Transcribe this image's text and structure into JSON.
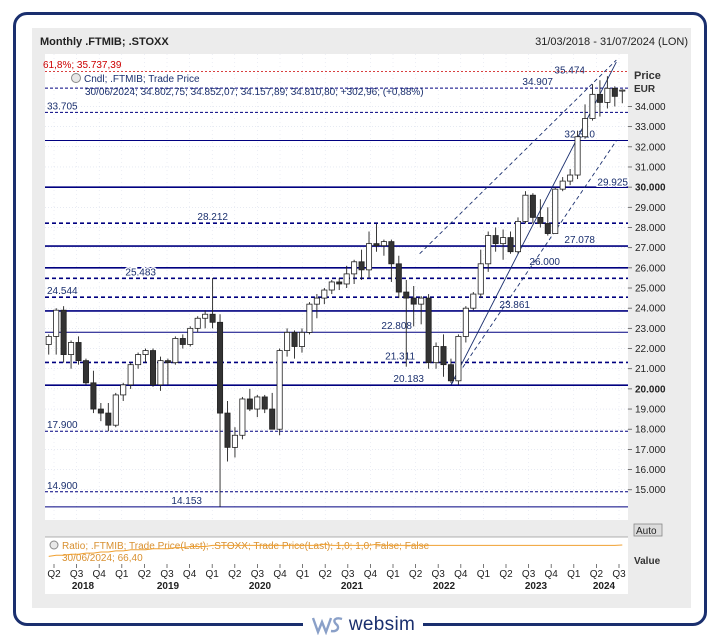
{
  "header": {
    "title": "Monthly .FTMIB; .STOXX",
    "date_range": "31/03/2018 - 31/07/2024 (LON)"
  },
  "info": {
    "series_label": "Cndl; .FTMIB; Trade Price",
    "ohlc_line": "30/06/2024; 34.802,75; 34.852,07; 34.157,89; 34.810,80; +302,96; (+0,88%)",
    "fib_label": "61,8%; 35.737,39"
  },
  "axis": {
    "price_title": "Price",
    "currency": "EUR",
    "auto_button": "Auto",
    "value_label": "Value"
  },
  "ratio_panel": {
    "label": "Ratio; .FTMIB; Trade Price(Last); .STOXX; Trade Price(Last);  1,0; 1,0; False; False",
    "last_value": "30/06/2024; 66,40"
  },
  "brand": {
    "name": "websim",
    "logo_icon": "ws-logo-icon"
  },
  "colors": {
    "navy": "#1a2f6e",
    "level_line": "#000080",
    "ratio_line": "#f0a030",
    "fib_line": "#cc0000",
    "grid": "#cfd6e6"
  },
  "chart_data": {
    "type": "candlestick",
    "title": "Monthly .FTMIB; .STOXX",
    "ylabel": "Price EUR",
    "ylim": [
      13500,
      36600
    ],
    "y_ticks": [
      15000,
      16000,
      17000,
      18000,
      19000,
      20000,
      21000,
      22000,
      23000,
      24000,
      25000,
      26000,
      27000,
      28000,
      29000,
      30000,
      31000,
      32000,
      33000,
      34000
    ],
    "y_tick_labels": [
      "15.000",
      "16.000",
      "17.000",
      "18.000",
      "19.000",
      "20.000",
      "21.000",
      "22.000",
      "23.000",
      "24.000",
      "25.000",
      "26.000",
      "27.000",
      "28.000",
      "29.000",
      "30.000",
      "31.000",
      "32.000",
      "33.000",
      "34.000"
    ],
    "x_quarters": [
      "Q2",
      "Q3",
      "Q4",
      "Q1",
      "Q2",
      "Q3",
      "Q4",
      "Q1",
      "Q2",
      "Q3",
      "Q4",
      "Q1",
      "Q2",
      "Q3",
      "Q4",
      "Q1",
      "Q2",
      "Q3",
      "Q4",
      "Q1",
      "Q2",
      "Q3",
      "Q4",
      "Q1",
      "Q2",
      "Q3"
    ],
    "x_years": [
      "2018",
      "2019",
      "2020",
      "2021",
      "2022",
      "2023",
      "2024"
    ],
    "levels": [
      {
        "value": 33705,
        "label": "33.705",
        "style": "dashed"
      },
      {
        "value": 32310,
        "label": "32.310",
        "style": "solid"
      },
      {
        "value": 30000,
        "label": "",
        "style": "solid-thick"
      },
      {
        "value": 29925,
        "label": "29.925",
        "style": "none"
      },
      {
        "value": 28212,
        "label": "28.212",
        "style": "dashed-thick"
      },
      {
        "value": 27078,
        "label": "27.078",
        "style": "solid-thick"
      },
      {
        "value": 26000,
        "label": "26.000",
        "style": "solid-thick"
      },
      {
        "value": 25483,
        "label": "25.483",
        "style": "dashed-thick"
      },
      {
        "value": 24544,
        "label": "24.544",
        "style": "dashed-thick"
      },
      {
        "value": 23861,
        "label": "23.861",
        "style": "solid-thick"
      },
      {
        "value": 22808,
        "label": "22.808",
        "style": "solid"
      },
      {
        "value": 21311,
        "label": "21.311",
        "style": "dashed-thick"
      },
      {
        "value": 20183,
        "label": "20.183",
        "style": "solid-thick"
      },
      {
        "value": 17900,
        "label": "17.900",
        "style": "dashed"
      },
      {
        "value": 14900,
        "label": "14.900",
        "style": "dashed"
      },
      {
        "value": 14153,
        "label": "14.153",
        "style": "solid"
      },
      {
        "value": 34907,
        "label": "34.907",
        "style": "dashed"
      },
      {
        "value": 35474,
        "label": "35.474",
        "style": "none"
      },
      {
        "value": 35737,
        "label": "",
        "style": "fib"
      }
    ],
    "candles": [
      {
        "o": 22200,
        "h": 22700,
        "l": 21700,
        "c": 22600
      },
      {
        "o": 22600,
        "h": 24000,
        "l": 21700,
        "c": 23900
      },
      {
        "o": 23900,
        "h": 24100,
        "l": 21300,
        "c": 21700
      },
      {
        "o": 21700,
        "h": 22400,
        "l": 21000,
        "c": 22300
      },
      {
        "o": 22300,
        "h": 22600,
        "l": 21200,
        "c": 21400
      },
      {
        "o": 21400,
        "h": 21500,
        "l": 20200,
        "c": 20300
      },
      {
        "o": 20300,
        "h": 20900,
        "l": 18800,
        "c": 19000
      },
      {
        "o": 19000,
        "h": 19300,
        "l": 18400,
        "c": 18800
      },
      {
        "o": 18800,
        "h": 19300,
        "l": 17900,
        "c": 18200
      },
      {
        "o": 18200,
        "h": 19800,
        "l": 18100,
        "c": 19700
      },
      {
        "o": 19700,
        "h": 20300,
        "l": 19400,
        "c": 20200
      },
      {
        "o": 20200,
        "h": 21300,
        "l": 20000,
        "c": 21200
      },
      {
        "o": 21200,
        "h": 21800,
        "l": 21000,
        "c": 21700
      },
      {
        "o": 21700,
        "h": 22000,
        "l": 21300,
        "c": 21900
      },
      {
        "o": 21900,
        "h": 22000,
        "l": 20100,
        "c": 20200
      },
      {
        "o": 20200,
        "h": 21600,
        "l": 19900,
        "c": 21400
      },
      {
        "o": 21400,
        "h": 21500,
        "l": 20200,
        "c": 21300
      },
      {
        "o": 21300,
        "h": 22600,
        "l": 21200,
        "c": 22500
      },
      {
        "o": 22500,
        "h": 22700,
        "l": 22000,
        "c": 22200
      },
      {
        "o": 22200,
        "h": 23100,
        "l": 22100,
        "c": 23000
      },
      {
        "o": 23000,
        "h": 23600,
        "l": 22800,
        "c": 23500
      },
      {
        "o": 23500,
        "h": 23900,
        "l": 23000,
        "c": 23700
      },
      {
        "o": 23700,
        "h": 25500,
        "l": 23000,
        "c": 23300
      },
      {
        "o": 23300,
        "h": 23700,
        "l": 14153,
        "c": 18800
      },
      {
        "o": 18800,
        "h": 19400,
        "l": 16400,
        "c": 17100
      },
      {
        "o": 17100,
        "h": 18100,
        "l": 16600,
        "c": 17700
      },
      {
        "o": 17700,
        "h": 19600,
        "l": 17500,
        "c": 19500
      },
      {
        "o": 19500,
        "h": 20000,
        "l": 18900,
        "c": 19000
      },
      {
        "o": 19000,
        "h": 19700,
        "l": 18600,
        "c": 19600
      },
      {
        "o": 19600,
        "h": 19700,
        "l": 18800,
        "c": 19000
      },
      {
        "o": 19000,
        "h": 19800,
        "l": 18000,
        "c": 18000
      },
      {
        "o": 18000,
        "h": 22000,
        "l": 17700,
        "c": 21900
      },
      {
        "o": 21900,
        "h": 23000,
        "l": 21600,
        "c": 22800
      },
      {
        "o": 22800,
        "h": 22900,
        "l": 21500,
        "c": 22100
      },
      {
        "o": 22100,
        "h": 23000,
        "l": 21800,
        "c": 22800
      },
      {
        "o": 22800,
        "h": 24300,
        "l": 22700,
        "c": 24200
      },
      {
        "o": 24200,
        "h": 24700,
        "l": 23500,
        "c": 24500
      },
      {
        "o": 24500,
        "h": 25000,
        "l": 24200,
        "c": 24900
      },
      {
        "o": 24900,
        "h": 25400,
        "l": 24700,
        "c": 25300
      },
      {
        "o": 25300,
        "h": 25500,
        "l": 24900,
        "c": 25200
      },
      {
        "o": 25200,
        "h": 26100,
        "l": 25000,
        "c": 25700
      },
      {
        "o": 25700,
        "h": 26400,
        "l": 25200,
        "c": 26300
      },
      {
        "o": 26300,
        "h": 26900,
        "l": 25400,
        "c": 25900
      },
      {
        "o": 25900,
        "h": 27800,
        "l": 25500,
        "c": 27200
      },
      {
        "o": 27200,
        "h": 28200,
        "l": 26800,
        "c": 27100
      },
      {
        "o": 27100,
        "h": 27400,
        "l": 26600,
        "c": 27300
      },
      {
        "o": 27300,
        "h": 27400,
        "l": 25300,
        "c": 26200
      },
      {
        "o": 26200,
        "h": 26600,
        "l": 24500,
        "c": 24800
      },
      {
        "o": 24800,
        "h": 25400,
        "l": 21100,
        "c": 24500
      },
      {
        "o": 24500,
        "h": 25100,
        "l": 23100,
        "c": 24200
      },
      {
        "o": 24200,
        "h": 24600,
        "l": 23200,
        "c": 24500
      },
      {
        "o": 24500,
        "h": 24700,
        "l": 21000,
        "c": 21300
      },
      {
        "o": 21300,
        "h": 22300,
        "l": 21000,
        "c": 22100
      },
      {
        "o": 22100,
        "h": 22700,
        "l": 20600,
        "c": 21200
      },
      {
        "o": 21200,
        "h": 21500,
        "l": 20300,
        "c": 20400
      },
      {
        "o": 20400,
        "h": 22700,
        "l": 20200,
        "c": 22600
      },
      {
        "o": 22600,
        "h": 24100,
        "l": 22300,
        "c": 24000
      },
      {
        "o": 24000,
        "h": 24800,
        "l": 23900,
        "c": 24700
      },
      {
        "o": 24700,
        "h": 26900,
        "l": 24500,
        "c": 26200
      },
      {
        "o": 26200,
        "h": 27800,
        "l": 25800,
        "c": 27600
      },
      {
        "o": 27600,
        "h": 28000,
        "l": 26800,
        "c": 27200
      },
      {
        "o": 27200,
        "h": 27900,
        "l": 26400,
        "c": 27500
      },
      {
        "o": 27500,
        "h": 27800,
        "l": 26700,
        "c": 26800
      },
      {
        "o": 26800,
        "h": 28500,
        "l": 26700,
        "c": 28300
      },
      {
        "o": 28300,
        "h": 29800,
        "l": 28200,
        "c": 29600
      },
      {
        "o": 29600,
        "h": 29700,
        "l": 28200,
        "c": 28500
      },
      {
        "o": 28500,
        "h": 29400,
        "l": 28000,
        "c": 28200
      },
      {
        "o": 28200,
        "h": 29000,
        "l": 27600,
        "c": 27700
      },
      {
        "o": 27700,
        "h": 30000,
        "l": 27700,
        "c": 29900
      },
      {
        "o": 29900,
        "h": 30500,
        "l": 29800,
        "c": 30300
      },
      {
        "o": 30300,
        "h": 30900,
        "l": 30100,
        "c": 30600
      },
      {
        "o": 30600,
        "h": 32800,
        "l": 30400,
        "c": 32500
      },
      {
        "o": 32500,
        "h": 34100,
        "l": 32400,
        "c": 33400
      },
      {
        "o": 33400,
        "h": 35100,
        "l": 33300,
        "c": 34600
      },
      {
        "o": 34600,
        "h": 35300,
        "l": 33500,
        "c": 34200
      },
      {
        "o": 34200,
        "h": 35500,
        "l": 33900,
        "c": 34900
      },
      {
        "o": 34900,
        "h": 35000,
        "l": 34000,
        "c": 34500
      },
      {
        "o": 34800,
        "h": 34852,
        "l": 34158,
        "c": 34811
      }
    ],
    "channel_lines": [
      {
        "from": [
          2022.75,
          20200
        ],
        "to": [
          2024.6,
          36200
        ],
        "style": "solid"
      },
      {
        "from": [
          2022.4,
          26700
        ],
        "to": [
          2024.6,
          36300
        ],
        "style": "dashed"
      },
      {
        "from": [
          2022.75,
          20200
        ],
        "to": [
          2024.6,
          32300
        ],
        "style": "dashed"
      }
    ],
    "ratio_series": [
      56,
      57,
      57,
      58,
      58,
      59,
      59,
      60,
      60,
      61,
      61,
      62,
      62,
      62,
      63,
      63,
      63,
      64,
      64,
      65,
      65,
      65,
      66,
      66,
      66,
      66,
      66,
      66,
      66,
      66,
      66,
      66,
      66,
      66,
      66,
      66,
      66,
      67,
      66,
      66,
      66,
      66,
      66,
      66,
      67,
      66,
      66,
      66,
      66,
      66,
      66,
      66,
      66,
      66,
      66,
      66,
      66,
      66,
      66,
      66,
      66,
      66,
      66,
      66,
      66,
      66,
      66,
      66,
      66,
      66,
      66,
      66,
      66,
      66,
      66,
      66,
      66,
      66.4
    ]
  }
}
